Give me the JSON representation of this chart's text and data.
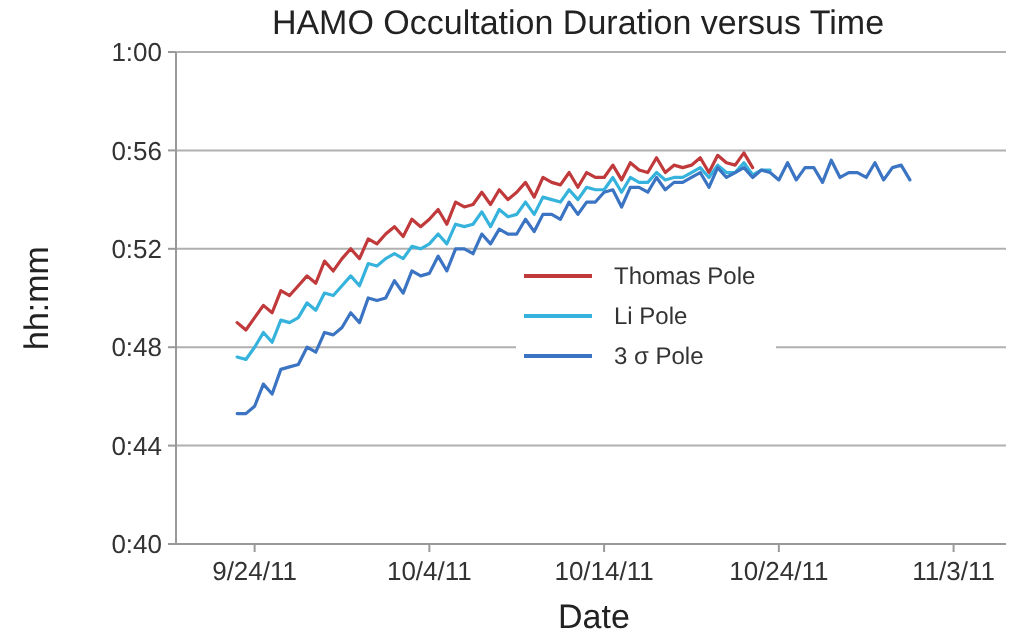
{
  "chart_data": {
    "type": "line",
    "title": "HAMO Occultation Duration versus Time",
    "xlabel": "Date",
    "ylabel": "hh:mm",
    "x": [
      "2011-09-23T00:00",
      "2011-09-23T12:00",
      "2011-09-24T00:00",
      "2011-09-24T12:00",
      "2011-09-25T00:00",
      "2011-09-25T12:00",
      "2011-09-26T00:00",
      "2011-09-26T12:00",
      "2011-09-27T00:00",
      "2011-09-27T12:00",
      "2011-09-28T00:00",
      "2011-09-28T12:00",
      "2011-09-29T00:00",
      "2011-09-29T12:00",
      "2011-09-30T00:00",
      "2011-09-30T12:00",
      "2011-10-01T00:00",
      "2011-10-01T12:00",
      "2011-10-02T00:00",
      "2011-10-02T12:00",
      "2011-10-03T00:00",
      "2011-10-03T12:00",
      "2011-10-04T00:00",
      "2011-10-04T12:00",
      "2011-10-05T00:00",
      "2011-10-05T12:00",
      "2011-10-06T00:00",
      "2011-10-06T12:00",
      "2011-10-07T00:00",
      "2011-10-07T12:00",
      "2011-10-08T00:00",
      "2011-10-08T12:00",
      "2011-10-09T00:00",
      "2011-10-09T12:00",
      "2011-10-10T00:00",
      "2011-10-10T12:00",
      "2011-10-11T00:00",
      "2011-10-11T12:00",
      "2011-10-12T00:00",
      "2011-10-12T12:00",
      "2011-10-13T00:00",
      "2011-10-13T12:00",
      "2011-10-14T00:00",
      "2011-10-14T12:00",
      "2011-10-15T00:00",
      "2011-10-15T12:00",
      "2011-10-16T00:00",
      "2011-10-16T12:00",
      "2011-10-17T00:00",
      "2011-10-17T12:00",
      "2011-10-18T00:00",
      "2011-10-18T12:00",
      "2011-10-19T00:00",
      "2011-10-19T12:00",
      "2011-10-20T00:00",
      "2011-10-20T12:00",
      "2011-10-21T00:00",
      "2011-10-21T12:00",
      "2011-10-22T00:00",
      "2011-10-22T12:00",
      "2011-10-23T00:00",
      "2011-10-23T12:00",
      "2011-10-24T00:00",
      "2011-10-24T12:00",
      "2011-10-25T00:00",
      "2011-10-25T12:00",
      "2011-10-26T00:00",
      "2011-10-26T12:00",
      "2011-10-27T00:00",
      "2011-10-27T12:00",
      "2011-10-28T00:00",
      "2011-10-28T12:00",
      "2011-10-29T00:00",
      "2011-10-29T12:00",
      "2011-10-30T00:00",
      "2011-10-30T12:00",
      "2011-10-31T00:00",
      "2011-10-31T12:00"
    ],
    "series": [
      {
        "name": "Thomas Pole",
        "color": "#c0393b",
        "values": [
          49.0,
          48.7,
          49.2,
          49.7,
          49.4,
          50.3,
          50.1,
          50.5,
          50.9,
          50.6,
          51.5,
          51.1,
          51.6,
          52.0,
          51.6,
          52.4,
          52.2,
          52.6,
          52.9,
          52.5,
          53.2,
          52.9,
          53.2,
          53.6,
          53.0,
          53.9,
          53.7,
          53.8,
          54.3,
          53.8,
          54.4,
          54.0,
          54.3,
          54.7,
          54.1,
          54.9,
          54.7,
          54.6,
          55.1,
          54.5,
          55.1,
          54.9,
          54.9,
          55.4,
          54.8,
          55.5,
          55.2,
          55.1,
          55.7,
          55.1,
          55.4,
          55.3,
          55.4,
          55.7,
          55.1,
          55.8,
          55.5,
          55.4,
          55.9,
          55.3,
          null,
          null,
          null,
          null,
          null,
          null,
          null,
          null,
          null,
          null,
          null,
          null,
          null,
          null,
          null,
          null,
          null,
          null
        ]
      },
      {
        "name": "Li Pole",
        "color": "#36b3dc",
        "values": [
          47.6,
          47.5,
          48.0,
          48.6,
          48.2,
          49.1,
          49.0,
          49.2,
          49.8,
          49.5,
          50.2,
          50.1,
          50.5,
          50.9,
          50.5,
          51.4,
          51.3,
          51.6,
          51.8,
          51.6,
          52.1,
          52.0,
          52.2,
          52.6,
          52.2,
          53.0,
          52.9,
          53.0,
          53.5,
          52.9,
          53.6,
          53.3,
          53.4,
          53.9,
          53.4,
          54.1,
          54.0,
          53.9,
          54.4,
          54.0,
          54.5,
          54.4,
          54.4,
          54.9,
          54.3,
          54.9,
          54.7,
          54.7,
          55.1,
          54.8,
          54.9,
          54.9,
          55.1,
          55.3,
          54.9,
          55.4,
          55.1,
          55.1,
          55.5,
          55.0,
          55.2,
          55.2,
          null,
          null,
          null,
          null,
          null,
          null,
          null,
          null,
          null,
          null,
          null,
          null,
          null,
          null,
          null,
          null
        ]
      },
      {
        "name": "3 σ Pole",
        "color": "#3b74c2",
        "values": [
          45.3,
          45.3,
          45.6,
          46.5,
          46.1,
          47.1,
          47.2,
          47.3,
          48.0,
          47.8,
          48.6,
          48.5,
          48.8,
          49.4,
          49.0,
          50.0,
          49.9,
          50.0,
          50.7,
          50.2,
          51.1,
          50.9,
          51.0,
          51.7,
          51.1,
          52.0,
          52.0,
          51.8,
          52.6,
          52.2,
          52.8,
          52.6,
          52.6,
          53.2,
          52.7,
          53.4,
          53.4,
          53.2,
          53.9,
          53.4,
          53.9,
          53.9,
          54.3,
          54.4,
          53.7,
          54.5,
          54.5,
          54.3,
          54.9,
          54.4,
          54.7,
          54.7,
          54.9,
          55.1,
          54.5,
          55.3,
          54.9,
          55.1,
          55.3,
          54.9,
          55.2,
          55.1,
          54.8,
          55.5,
          54.8,
          55.3,
          55.3,
          54.7,
          55.6,
          54.9,
          55.1,
          55.1,
          54.9,
          55.5,
          54.8,
          55.3,
          55.4,
          54.8
        ]
      }
    ],
    "xlim": [
      "2011-09-19T12:00",
      "2011-11-06T00:00"
    ],
    "xticks": [
      {
        "value": "2011-09-24",
        "label": "9/24/11"
      },
      {
        "value": "2011-10-04",
        "label": "10/4/11"
      },
      {
        "value": "2011-10-14",
        "label": "10/14/11"
      },
      {
        "value": "2011-10-24",
        "label": "10/24/11"
      },
      {
        "value": "2011-11-03",
        "label": "11/3/11"
      }
    ],
    "ylim": [
      40,
      60
    ],
    "yticks": [
      {
        "value": 40,
        "label": "0:40"
      },
      {
        "value": 44,
        "label": "0:44"
      },
      {
        "value": 48,
        "label": "0:48"
      },
      {
        "value": 52,
        "label": "0:52"
      },
      {
        "value": 56,
        "label": "0:56"
      },
      {
        "value": 60,
        "label": "1:00"
      }
    ],
    "grid": "y",
    "legend": "center"
  }
}
